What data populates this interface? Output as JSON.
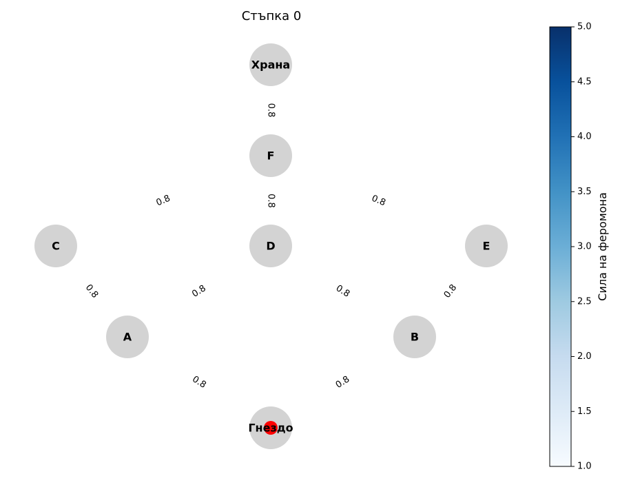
{
  "title": "Стъпка 0",
  "graph": {
    "nodes": [
      {
        "id": "food",
        "label": "Храна"
      },
      {
        "id": "F",
        "label": "F"
      },
      {
        "id": "C",
        "label": "C"
      },
      {
        "id": "D",
        "label": "D"
      },
      {
        "id": "E",
        "label": "E"
      },
      {
        "id": "A",
        "label": "A"
      },
      {
        "id": "B",
        "label": "B"
      },
      {
        "id": "nest",
        "label": "Гнездо"
      }
    ],
    "edges": [
      {
        "from": "food",
        "to": "F",
        "weight": "0.8"
      },
      {
        "from": "F",
        "to": "C",
        "weight": "0.8"
      },
      {
        "from": "F",
        "to": "D",
        "weight": "0.8"
      },
      {
        "from": "F",
        "to": "E",
        "weight": "0.8"
      },
      {
        "from": "C",
        "to": "A",
        "weight": "0.8"
      },
      {
        "from": "D",
        "to": "A",
        "weight": "0.8"
      },
      {
        "from": "D",
        "to": "B",
        "weight": "0.8"
      },
      {
        "from": "E",
        "to": "B",
        "weight": "0.8"
      },
      {
        "from": "A",
        "to": "nest",
        "weight": "0.8"
      },
      {
        "from": "B",
        "to": "nest",
        "weight": "0.8"
      }
    ],
    "ant_node": "nest",
    "node_color": "#d3d3d3",
    "ant_color": "#ff0000"
  },
  "colorbar": {
    "label": "Сила на феромона",
    "min": 1.0,
    "max": 5.0,
    "ticks": [
      "1.0",
      "1.5",
      "2.0",
      "2.5",
      "3.0",
      "3.5",
      "4.0",
      "4.5",
      "5.0"
    ],
    "cmap": [
      "#f7fbff",
      "#deebf7",
      "#c6dbef",
      "#9ecae1",
      "#6baed6",
      "#4292c6",
      "#2171b5",
      "#08519c",
      "#08306b"
    ]
  }
}
